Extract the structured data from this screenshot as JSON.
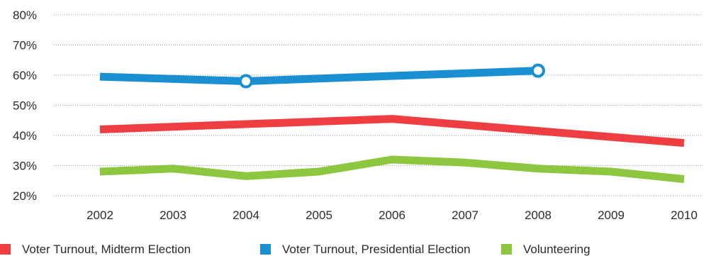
{
  "chart_data": {
    "type": "line",
    "x": [
      "2002",
      "2003",
      "2004",
      "2005",
      "2006",
      "2007",
      "2008",
      "2009",
      "2010"
    ],
    "ylim": [
      20,
      80
    ],
    "y_ticks": [
      "20%",
      "30%",
      "40%",
      "50%",
      "60%",
      "70%",
      "80%"
    ],
    "y_tick_values": [
      20,
      30,
      40,
      50,
      60,
      70,
      80
    ],
    "grid": "horizontal dotted",
    "legend_position": "bottom",
    "series": [
      {
        "name": "Voter Turnout, Midterm Election",
        "color": "#ef3e42",
        "points": [
          {
            "x": "2002",
            "y": 42
          },
          {
            "x": "2006",
            "y": 45.5
          },
          {
            "x": "2010",
            "y": 37.5
          }
        ]
      },
      {
        "name": "Voter Turnout, Presidential Election",
        "color": "#1a8fd1",
        "points": [
          {
            "x": "2002",
            "y": 59.5
          },
          {
            "x": "2004",
            "y": 58
          },
          {
            "x": "2008",
            "y": 61.5
          }
        ],
        "markers": [
          "2004",
          "2008"
        ]
      },
      {
        "name": "Volunteering",
        "color": "#8dc63f",
        "points": [
          {
            "x": "2002",
            "y": 28
          },
          {
            "x": "2003",
            "y": 29
          },
          {
            "x": "2004",
            "y": 26.5
          },
          {
            "x": "2005",
            "y": 28
          },
          {
            "x": "2006",
            "y": 32
          },
          {
            "x": "2007",
            "y": 31
          },
          {
            "x": "2008",
            "y": 29
          },
          {
            "x": "2009",
            "y": 28
          },
          {
            "x": "2010",
            "y": 25.5
          }
        ]
      }
    ]
  }
}
